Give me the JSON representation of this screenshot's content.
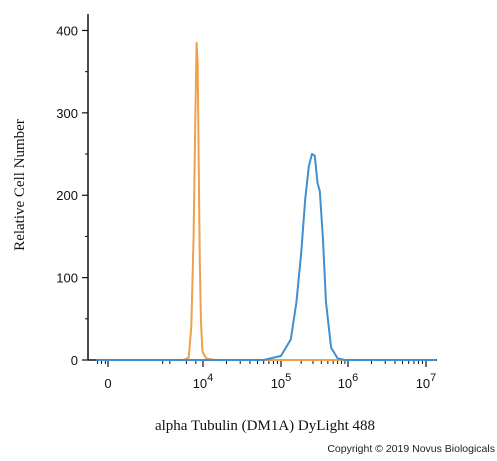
{
  "chart_data": {
    "type": "line",
    "title": "",
    "xlabel": "alpha Tubulin (DM1A) DyLight 488",
    "ylabel": "Relative Cell Number",
    "x_scale": "biexponential",
    "xlim": [
      -1000,
      10000000
    ],
    "ylim": [
      0,
      420
    ],
    "y_ticks": [
      0,
      100,
      200,
      300,
      400
    ],
    "y_tick_labels": [
      "0",
      "100",
      "200",
      "300",
      "400"
    ],
    "x_ticks": [
      {
        "value": 0,
        "base": "0",
        "exp": ""
      },
      {
        "value": 10000,
        "base": "10",
        "exp": "4"
      },
      {
        "value": 100000,
        "base": "10",
        "exp": "5"
      },
      {
        "value": 1000000,
        "base": "10",
        "exp": "6"
      },
      {
        "value": 10000000,
        "base": "10",
        "exp": "7"
      }
    ],
    "grid": false,
    "legend": "none",
    "series": [
      {
        "color": "#f0a04b",
        "x": [
          1500,
          2500,
          3200,
          4000,
          4800,
          5400,
          6000,
          6600,
          7300,
          8200,
          9500,
          11000,
          14000,
          20000
        ],
        "y": [
          0,
          3,
          40,
          150,
          300,
          385,
          360,
          240,
          120,
          45,
          10,
          2,
          0,
          0
        ]
      },
      {
        "color": "#3f8fd2",
        "x": [
          60000,
          100000,
          140000,
          170000,
          200000,
          230000,
          260000,
          290000,
          320000,
          350000,
          380000,
          420000,
          470000,
          560000,
          700000,
          900000
        ],
        "y": [
          0,
          5,
          25,
          70,
          130,
          195,
          235,
          250,
          248,
          215,
          205,
          150,
          70,
          15,
          2,
          0
        ]
      }
    ]
  },
  "copyright": "Copyright © 2019 Novus Biologicals"
}
